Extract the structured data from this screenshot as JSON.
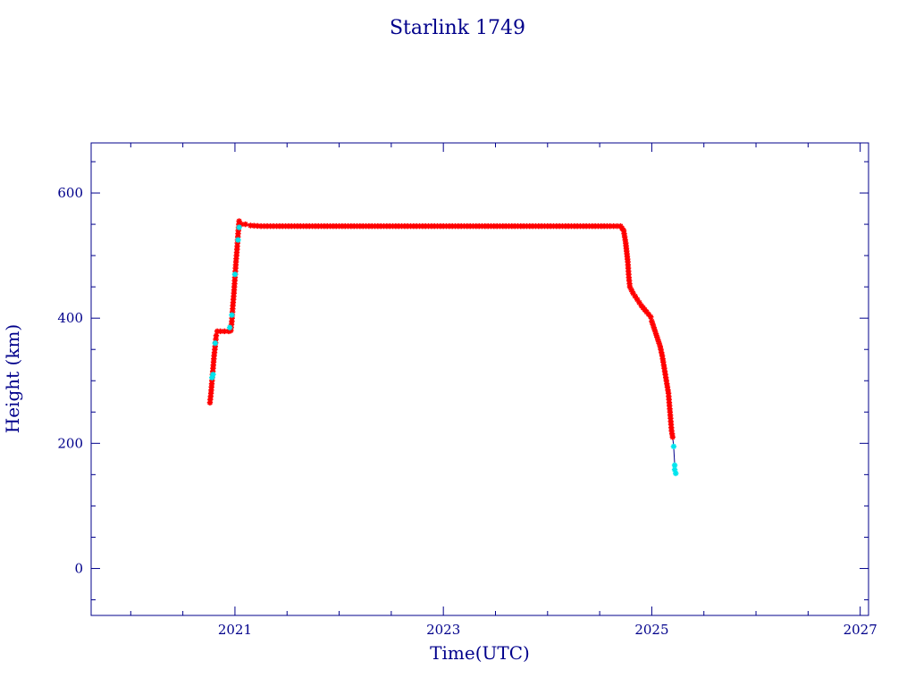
{
  "chart_data": {
    "type": "scatter",
    "title": "Starlink 1749",
    "xlabel": "Time(UTC)",
    "ylabel": "Height (km)",
    "xlim": [
      2019.62,
      2027.08
    ],
    "ylim": [
      -75,
      680
    ],
    "x_ticks": [
      2021,
      2023,
      2025,
      2027
    ],
    "x_tick_labels": [
      "2021",
      "2023",
      "2025",
      "2027"
    ],
    "y_ticks": [
      0,
      200,
      400,
      600
    ],
    "y_tick_labels": [
      "0",
      "200",
      "400",
      "600"
    ],
    "grid": false,
    "legend": "none",
    "colors": {
      "axes": "#00008b",
      "primary_marker": "#ff0000",
      "secondary_marker": "#00e5ee",
      "connecting_line": "#00008b"
    },
    "series": [
      {
        "marker": "star",
        "color": "#ff0000",
        "points": [
          [
            2020.76,
            265
          ],
          [
            2020.77,
            280
          ],
          [
            2020.78,
            300
          ],
          [
            2020.79,
            320
          ],
          [
            2020.8,
            340
          ],
          [
            2020.81,
            355
          ],
          [
            2020.82,
            372
          ],
          [
            2020.83,
            379
          ],
          [
            2020.86,
            379
          ],
          [
            2020.9,
            379
          ],
          [
            2020.94,
            379
          ],
          [
            2020.96,
            380
          ],
          [
            2020.97,
            395
          ],
          [
            2020.98,
            420
          ],
          [
            2020.99,
            440
          ],
          [
            2021.0,
            465
          ],
          [
            2021.01,
            490
          ],
          [
            2021.02,
            510
          ],
          [
            2021.03,
            535
          ],
          [
            2021.04,
            555
          ],
          [
            2021.06,
            550
          ],
          [
            2021.1,
            550
          ],
          [
            2021.15,
            548
          ],
          [
            2021.25,
            547
          ],
          [
            2021.4,
            547
          ],
          [
            2021.6,
            547
          ],
          [
            2021.8,
            547
          ],
          [
            2022.0,
            547
          ],
          [
            2022.2,
            547
          ],
          [
            2022.4,
            547
          ],
          [
            2022.6,
            547
          ],
          [
            2022.8,
            547
          ],
          [
            2023.0,
            547
          ],
          [
            2023.2,
            547
          ],
          [
            2023.4,
            547
          ],
          [
            2023.6,
            547
          ],
          [
            2023.8,
            547
          ],
          [
            2024.0,
            547
          ],
          [
            2024.2,
            547
          ],
          [
            2024.4,
            547
          ],
          [
            2024.6,
            547
          ],
          [
            2024.7,
            547
          ],
          [
            2024.73,
            540
          ],
          [
            2024.75,
            520
          ],
          [
            2024.77,
            490
          ],
          [
            2024.78,
            465
          ],
          [
            2024.79,
            450
          ],
          [
            2024.82,
            440
          ],
          [
            2024.86,
            430
          ],
          [
            2024.9,
            420
          ],
          [
            2024.95,
            410
          ],
          [
            2024.99,
            402
          ],
          [
            2025.0,
            395
          ],
          [
            2025.02,
            385
          ],
          [
            2025.05,
            370
          ],
          [
            2025.08,
            355
          ],
          [
            2025.1,
            340
          ],
          [
            2025.12,
            320
          ],
          [
            2025.14,
            300
          ],
          [
            2025.16,
            280
          ],
          [
            2025.17,
            260
          ],
          [
            2025.18,
            240
          ],
          [
            2025.19,
            220
          ],
          [
            2025.2,
            210
          ]
        ]
      },
      {
        "marker": "star",
        "color": "#00e5ee",
        "points": [
          [
            2020.78,
            305
          ],
          [
            2020.79,
            310
          ],
          [
            2020.81,
            360
          ],
          [
            2020.95,
            385
          ],
          [
            2020.97,
            405
          ],
          [
            2021.0,
            470
          ],
          [
            2021.03,
            525
          ],
          [
            2021.04,
            545
          ],
          [
            2025.21,
            195
          ],
          [
            2025.22,
            165
          ],
          [
            2025.22,
            158
          ],
          [
            2025.23,
            152
          ]
        ]
      }
    ]
  }
}
